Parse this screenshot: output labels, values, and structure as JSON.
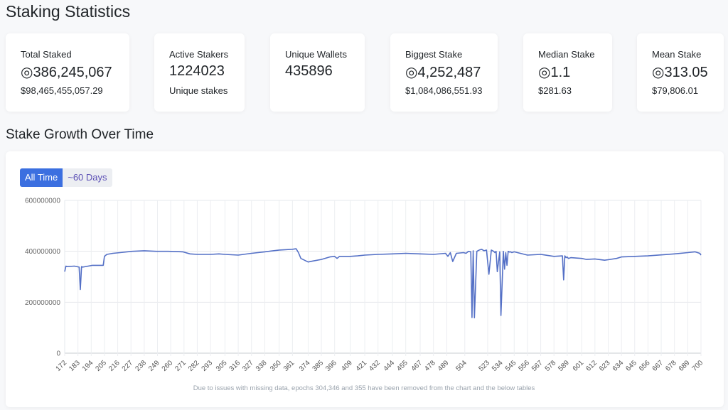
{
  "page": {
    "title": "Staking Statistics"
  },
  "stats": [
    {
      "label": "Total Staked",
      "value": "◎386,245,067",
      "sub": "$98,465,455,057.29"
    },
    {
      "label": "Active Stakers",
      "value": "1224023",
      "sub": "Unique stakes"
    },
    {
      "label": "Unique Wallets",
      "value": "435896",
      "sub": ""
    },
    {
      "label": "Biggest Stake",
      "value": "◎4,252,487",
      "sub": "$1,084,086,551.93"
    },
    {
      "label": "Median Stake",
      "value": "◎1.1",
      "sub": "$281.63"
    },
    {
      "label": "Mean Stake",
      "value": "◎313.05",
      "sub": "$79,806.01"
    }
  ],
  "growth": {
    "title": "Stake Growth Over Time",
    "tabs": {
      "all_time": "All Time",
      "sixty_days": "~60 Days"
    },
    "footnote": "Due to issues with missing data, epochs 304,346 and 355 have been removed from the chart and the below tables"
  },
  "chart_data": {
    "type": "line",
    "line_color": "#5470c6",
    "grid": true,
    "xlim": [
      172,
      700
    ],
    "ylim": [
      0,
      600000000
    ],
    "y_ticks": [
      "0",
      "200000000",
      "400000000",
      "600000000"
    ],
    "y_tick_values": [
      0,
      200000000,
      400000000,
      600000000
    ],
    "x_ticks": [
      172,
      183,
      194,
      205,
      216,
      227,
      238,
      249,
      260,
      271,
      282,
      293,
      305,
      316,
      327,
      338,
      350,
      361,
      374,
      385,
      396,
      409,
      421,
      432,
      444,
      455,
      467,
      478,
      489,
      504,
      523,
      534,
      545,
      556,
      567,
      578,
      589,
      601,
      612,
      623,
      634,
      645,
      656,
      667,
      678,
      689,
      700
    ],
    "series": [
      {
        "x": [
          172,
          173,
          174,
          180,
          184,
          185,
          186,
          187,
          195,
          196,
          198,
          204,
          205,
          207,
          212,
          218,
          228,
          238,
          248,
          258,
          270,
          276,
          282,
          293,
          300,
          305,
          316,
          327,
          338,
          350,
          361,
          364,
          366,
          368,
          374,
          378,
          385,
          392,
          396,
          398,
          400,
          409,
          415,
          421,
          432,
          444,
          455,
          467,
          478,
          488,
          490,
          492,
          494,
          497,
          503,
          505,
          507,
          509,
          510,
          511,
          512,
          514,
          516,
          518,
          520,
          522,
          524,
          526,
          528,
          529,
          530,
          531,
          533,
          534,
          536,
          537,
          538,
          539,
          540,
          541,
          542,
          543,
          545,
          556,
          567,
          578,
          585,
          586,
          587,
          588,
          589,
          590,
          592,
          601,
          605,
          612,
          620,
          623,
          630,
          634,
          645,
          656,
          667,
          678,
          689,
          695,
          699,
          700
        ],
        "y": [
          320000000,
          342000000,
          340000000,
          342000000,
          338000000,
          250000000,
          340000000,
          338000000,
          345000000,
          345000000,
          345000000,
          345000000,
          380000000,
          388000000,
          392000000,
          395000000,
          400000000,
          402000000,
          400000000,
          400000000,
          398000000,
          390000000,
          388000000,
          388000000,
          390000000,
          388000000,
          385000000,
          392000000,
          398000000,
          405000000,
          408000000,
          410000000,
          395000000,
          372000000,
          358000000,
          362000000,
          368000000,
          378000000,
          380000000,
          372000000,
          380000000,
          380000000,
          382000000,
          385000000,
          388000000,
          390000000,
          392000000,
          390000000,
          388000000,
          392000000,
          380000000,
          395000000,
          360000000,
          392000000,
          395000000,
          392000000,
          400000000,
          398000000,
          140000000,
          402000000,
          139000000,
          400000000,
          405000000,
          408000000,
          402000000,
          405000000,
          310000000,
          405000000,
          400000000,
          395000000,
          400000000,
          320000000,
          398000000,
          148000000,
          400000000,
          330000000,
          395000000,
          345000000,
          400000000,
          397000000,
          398000000,
          395000000,
          398000000,
          385000000,
          388000000,
          380000000,
          382000000,
          288000000,
          382000000,
          375000000,
          378000000,
          372000000,
          375000000,
          372000000,
          368000000,
          370000000,
          365000000,
          367000000,
          372000000,
          378000000,
          380000000,
          382000000,
          386000000,
          390000000,
          395000000,
          398000000,
          392000000,
          385000000
        ]
      }
    ]
  }
}
